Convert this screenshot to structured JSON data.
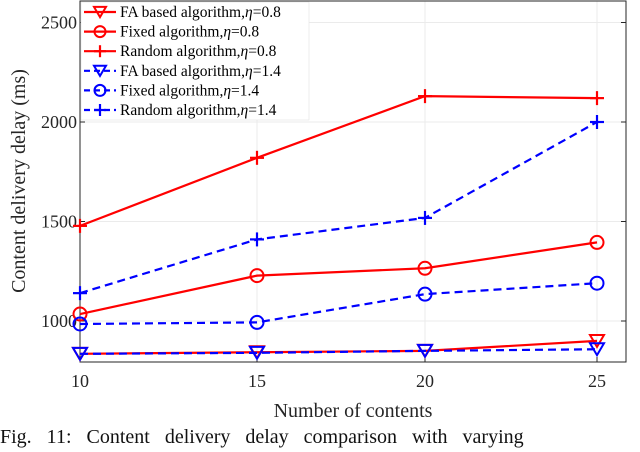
{
  "chart_data": {
    "type": "line",
    "title": "",
    "xlabel": "Number of contents",
    "ylabel": "Content delivery delay (ms)",
    "x": [
      10,
      15,
      20,
      25
    ],
    "xticks": [
      "10",
      "15",
      "20",
      "25"
    ],
    "yticks": [
      "1000",
      "1500",
      "2000",
      "2500"
    ],
    "xlim": [
      10,
      25
    ],
    "ylim": [
      800,
      2600
    ],
    "grid": true,
    "legend_position": "upper left",
    "series": [
      {
        "name": "FA based algorithm,η=0.8",
        "color": "#ff0000",
        "linestyle": "solid",
        "marker": "triangle-down",
        "values": [
          835,
          843,
          850,
          900
        ]
      },
      {
        "name": "Fixed algorithm,η=0.8",
        "color": "#ff0000",
        "linestyle": "solid",
        "marker": "circle",
        "values": [
          1035,
          1228,
          1265,
          1395
        ]
      },
      {
        "name": "Random algorithm,η=0.8",
        "color": "#ff0000",
        "linestyle": "solid",
        "marker": "plus",
        "values": [
          1478,
          1820,
          2130,
          2120
        ]
      },
      {
        "name": "FA based algorithm,η=1.4",
        "color": "#0000ff",
        "linestyle": "dashed",
        "marker": "triangle-down",
        "values": [
          835,
          840,
          850,
          858
        ]
      },
      {
        "name": "Fixed algorithm,η=1.4",
        "color": "#0000ff",
        "linestyle": "dashed",
        "marker": "circle",
        "values": [
          985,
          993,
          1135,
          1190
        ]
      },
      {
        "name": "Random algorithm,η=1.4",
        "color": "#0000ff",
        "linestyle": "dashed",
        "marker": "plus",
        "values": [
          1140,
          1410,
          1518,
          2000
        ]
      }
    ]
  },
  "legend": {
    "items": [
      {
        "prefix": "FA based algorithm,",
        "eta": "η",
        "suffix": "=0.8"
      },
      {
        "prefix": "Fixed algorithm,",
        "eta": "η",
        "suffix": "=0.8"
      },
      {
        "prefix": "Random algorithm,",
        "eta": "η",
        "suffix": "=0.8"
      },
      {
        "prefix": "FA based algorithm,",
        "eta": "η",
        "suffix": "=1.4"
      },
      {
        "prefix": "Fixed algorithm,",
        "eta": "η",
        "suffix": "=1.4"
      },
      {
        "prefix": "Random algorithm,",
        "eta": "η",
        "suffix": "=1.4"
      }
    ]
  },
  "caption": "Fig. 11: Content delivery delay comparison with varying"
}
